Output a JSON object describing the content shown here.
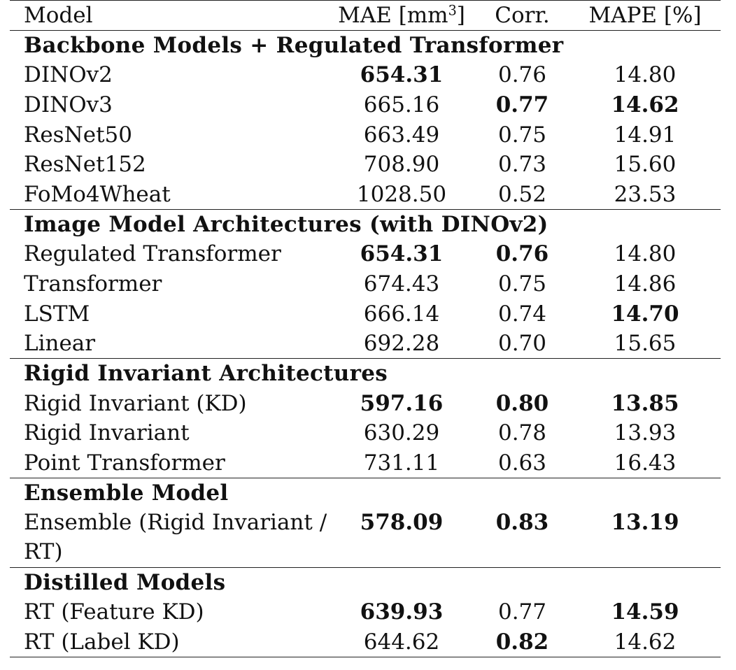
{
  "headers": {
    "model": "Model",
    "mae": "MAE [mm",
    "mae_sup": "3",
    "mae_close": "]",
    "corr": "Corr.",
    "mape": "MAPE [%]"
  },
  "sections": [
    {
      "title": "Backbone Models + Regulated Transformer",
      "rows": [
        {
          "model": "DINOv2",
          "mae": "654.31",
          "corr": "0.76",
          "mape": "14.80",
          "bold": [
            "mae"
          ]
        },
        {
          "model": "DINOv3",
          "mae": "665.16",
          "corr": "0.77",
          "mape": "14.62",
          "bold": [
            "corr",
            "mape"
          ]
        },
        {
          "model": "ResNet50",
          "mae": "663.49",
          "corr": "0.75",
          "mape": "14.91",
          "bold": []
        },
        {
          "model": "ResNet152",
          "mae": "708.90",
          "corr": "0.73",
          "mape": "15.60",
          "bold": []
        },
        {
          "model": "FoMo4Wheat",
          "mae": "1028.50",
          "corr": "0.52",
          "mape": "23.53",
          "bold": []
        }
      ]
    },
    {
      "title": "Image Model Architectures (with DINOv2)",
      "rows": [
        {
          "model": "Regulated Transformer",
          "mae": "654.31",
          "corr": "0.76",
          "mape": "14.80",
          "bold": [
            "mae",
            "corr"
          ]
        },
        {
          "model": "Transformer",
          "mae": "674.43",
          "corr": "0.75",
          "mape": "14.86",
          "bold": []
        },
        {
          "model": "LSTM",
          "mae": "666.14",
          "corr": "0.74",
          "mape": "14.70",
          "bold": [
            "mape"
          ]
        },
        {
          "model": "Linear",
          "mae": "692.28",
          "corr": "0.70",
          "mape": "15.65",
          "bold": []
        }
      ]
    },
    {
      "title": "Rigid Invariant Architectures",
      "rows": [
        {
          "model": "Rigid Invariant (KD)",
          "mae": "597.16",
          "corr": "0.80",
          "mape": "13.85",
          "bold": [
            "mae",
            "corr",
            "mape"
          ]
        },
        {
          "model": "Rigid Invariant",
          "mae": "630.29",
          "corr": "0.78",
          "mape": "13.93",
          "bold": []
        },
        {
          "model": "Point Transformer",
          "mae": "731.11",
          "corr": "0.63",
          "mape": "16.43",
          "bold": []
        }
      ]
    },
    {
      "title": "Ensemble Model",
      "rows": [
        {
          "model": "Ensemble (Rigid Invariant / RT)",
          "mae": "578.09",
          "corr": "0.83",
          "mape": "13.19",
          "bold": [
            "mae",
            "corr",
            "mape"
          ],
          "wrap": true
        }
      ]
    },
    {
      "title": "Distilled Models",
      "rows": [
        {
          "model": "RT (Feature KD)",
          "mae": "639.93",
          "corr": "0.77",
          "mape": "14.59",
          "bold": [
            "mae",
            "mape"
          ]
        },
        {
          "model": "RT (Label KD)",
          "mae": "644.62",
          "corr": "0.82",
          "mape": "14.62",
          "bold": [
            "corr"
          ]
        }
      ]
    }
  ]
}
